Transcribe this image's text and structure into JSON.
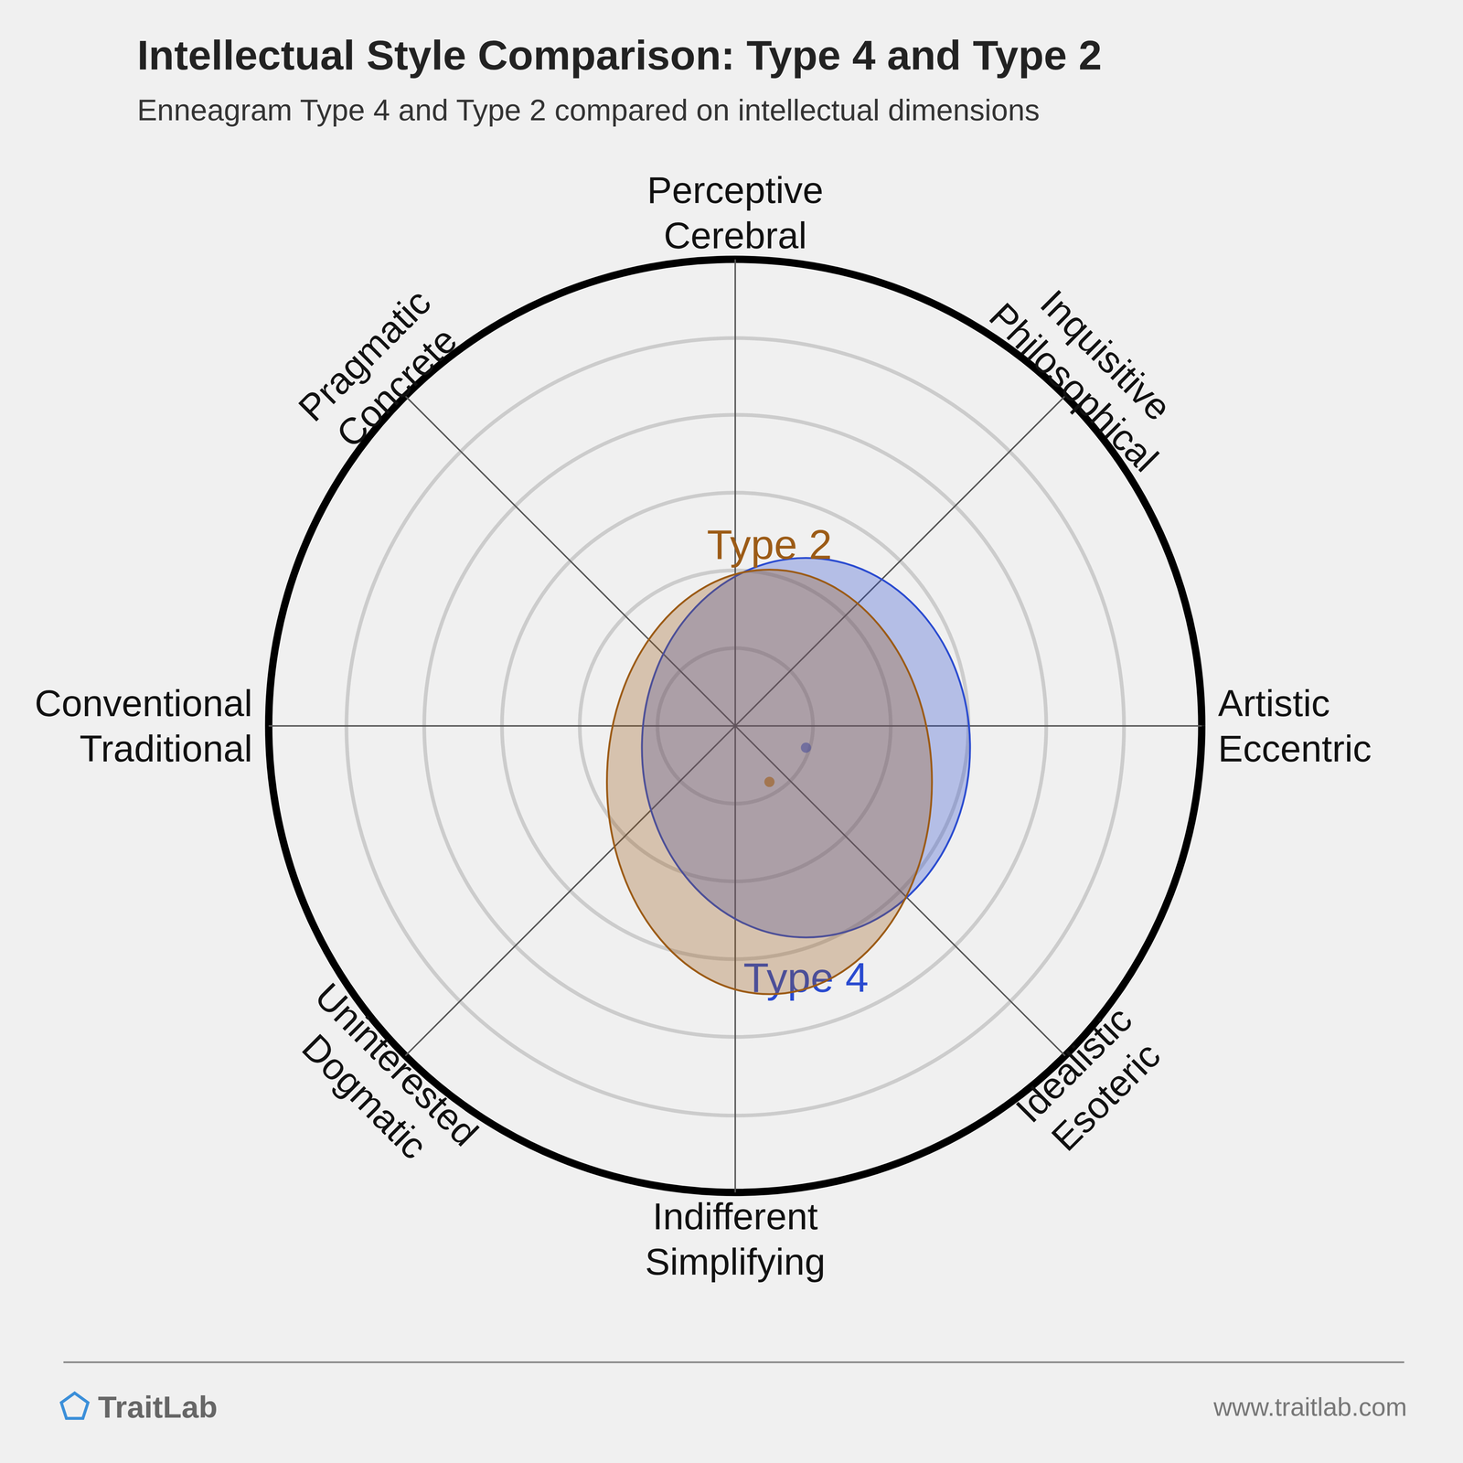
{
  "chart_data": {
    "type": "ellipse_radar",
    "title": "Intellectual Style Comparison: Type 4 and Type 2",
    "subtitle": "Enneagram Type 4 and Type 2 compared on intellectual dimensions",
    "axes": [
      "Perceptive\nCerebral",
      "Inquisitive\nPhilosophical",
      "Artistic\nEccentric",
      "Idealistic\nEsoteric",
      "Indifferent\nSimplifying",
      "Uninterested\nDogmatic",
      "Conventional\nTraditional",
      "Pragmatic\nConcrete"
    ],
    "rlim": [
      0,
      6
    ],
    "rticks": [
      1,
      2,
      3,
      4,
      5,
      6
    ],
    "series": [
      {
        "name": "Type 4",
        "color": "#2a4bd0",
        "center": [
          0.91,
          -0.28
        ],
        "radii": [
          2.11,
          2.44
        ]
      },
      {
        "name": "Type 2",
        "color": "#9c5b16",
        "center": [
          0.44,
          -0.72
        ],
        "radii": [
          2.09,
          2.73
        ]
      }
    ],
    "footer": {
      "brand": "TraitLab",
      "url": "www.traitlab.com"
    }
  }
}
